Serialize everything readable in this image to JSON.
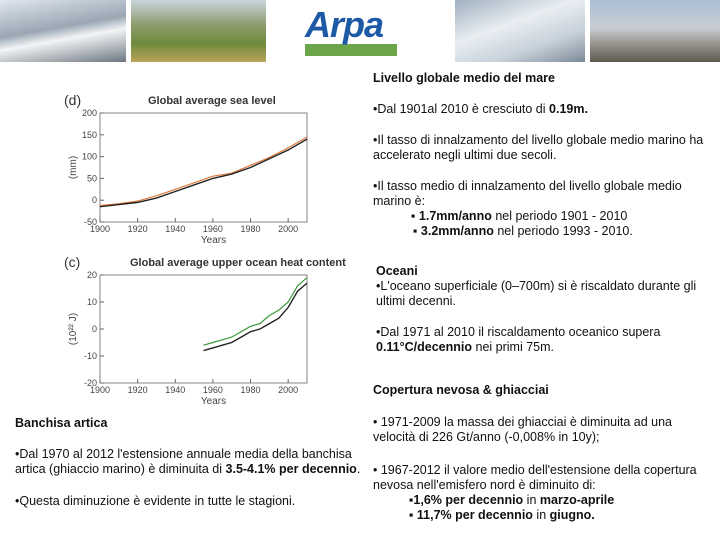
{
  "header": {
    "logo": "Arpa"
  },
  "sea": {
    "heading": "Livello globale medio del mare",
    "p1": [
      "•Dal 1901al 2010 è cresciuto di ",
      "0.19m."
    ],
    "p2": "•Il tasso di innalzamento del livello globale medio marino ha accelerato negli ultimi due secoli.",
    "p3": "•Il tasso medio di innalzamento del livello globale medio marino è:",
    "r1": [
      "▪ 1.7mm/anno",
      " nel periodo 1901 - 2010"
    ],
    "r2": [
      "▪ 3.2mm/anno",
      " nel periodo 1993 - 2010."
    ]
  },
  "ocean": {
    "heading": "Oceani",
    "p1": "•L'oceano superficiale (0–700m) si è riscaldato durante gli ultimi decenni.",
    "p2": [
      "•Dal 1971 al 2010 il riscaldamento oceanico supera ",
      "0.11°C/decennio",
      " nei primi 75m."
    ]
  },
  "snow": {
    "heading": "Copertura nevosa & ghiacciai",
    "p1": "• 1971-2009 la massa dei ghiacciai è diminuita ad una velocità di 226 Gt/anno (-0,008% in 10y);",
    "p2": "• 1967-2012 il valore medio dell'estensione della copertura nevosa nell'emisfero nord è diminuito di:",
    "r1": [
      "▪1,6% per decennio",
      " in ",
      "marzo-aprile"
    ],
    "r2": [
      "▪ 11,7% per decennio",
      " in ",
      "giugno."
    ]
  },
  "arctic": {
    "heading": "Banchisa artica",
    "p1": [
      "•Dal 1970 al 2012 l'estensione annuale media della banchisa artica (ghiaccio marino) è diminuita di ",
      "3.5-4.1% per decennio",
      "."
    ],
    "p2": "•Questa diminuzione è evidente in tutte le stagioni."
  },
  "chart_data": [
    {
      "type": "line",
      "panel": "(d)",
      "title": "Global average sea level",
      "x_label": "Years",
      "y_label": "(mm)",
      "xlim": [
        1900,
        2010
      ],
      "ylim": [
        -50,
        200
      ],
      "xticks": [
        1900,
        1920,
        1940,
        1960,
        1980,
        2000
      ],
      "yticks": [
        -50,
        0,
        50,
        100,
        150,
        200
      ],
      "x": [
        1900,
        1910,
        1920,
        1930,
        1940,
        1950,
        1960,
        1970,
        1980,
        1990,
        2000,
        2010
      ],
      "series": [
        {
          "color": "#e07a3c",
          "values": [
            -12,
            -8,
            -2,
            10,
            25,
            40,
            55,
            62,
            80,
            98,
            120,
            145
          ]
        },
        {
          "color": "#222222",
          "values": [
            -15,
            -10,
            -5,
            5,
            20,
            35,
            50,
            60,
            75,
            95,
            115,
            140
          ]
        }
      ]
    },
    {
      "type": "line",
      "panel": "(c)",
      "title": "Global average upper ocean heat content",
      "x_label": "Years",
      "y_label": "(10²² J)",
      "xlim": [
        1900,
        2010
      ],
      "ylim": [
        -20,
        20
      ],
      "xticks": [
        1900,
        1920,
        1940,
        1960,
        1980,
        2000
      ],
      "yticks": [
        -20,
        -10,
        0,
        10,
        20
      ],
      "x": [
        1955,
        1960,
        1965,
        1970,
        1975,
        1980,
        1985,
        1990,
        1995,
        2000,
        2005,
        2010
      ],
      "series": [
        {
          "color": "#3a9a3a",
          "values": [
            -6,
            -5,
            -4,
            -3,
            -1,
            1,
            2,
            5,
            7,
            10,
            16,
            19
          ]
        },
        {
          "color": "#222222",
          "values": [
            -8,
            -7,
            -6,
            -5,
            -3,
            -1,
            0,
            2,
            4,
            8,
            14,
            17
          ]
        }
      ]
    }
  ]
}
